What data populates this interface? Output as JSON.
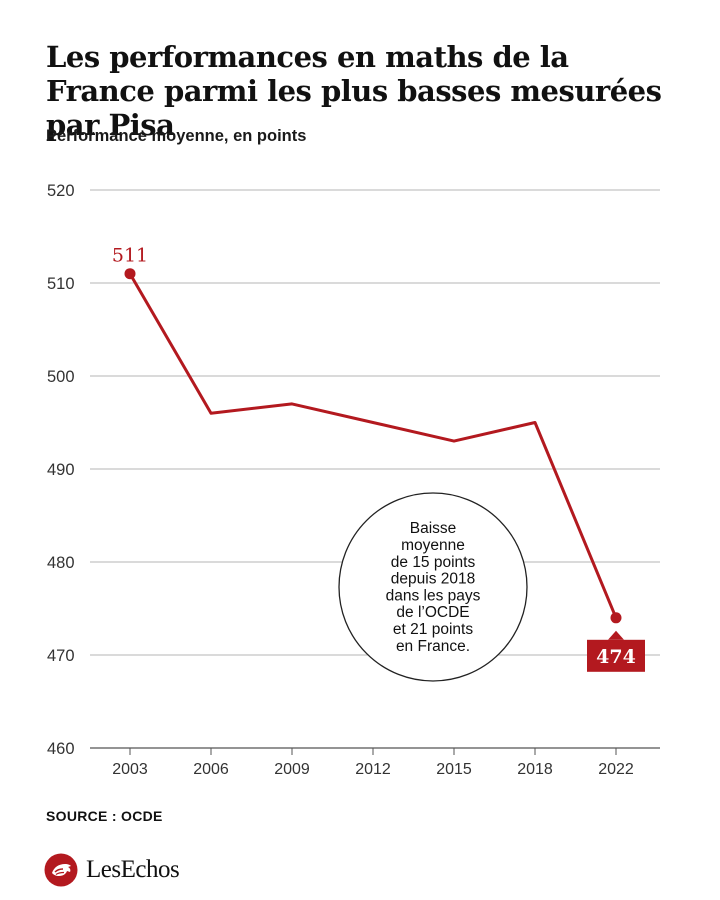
{
  "title": "Les performances en maths de la France parmi les plus basses mesurées par Pisa",
  "subtitle": "Performance moyenne, en points",
  "source": "SOURCE : OCDE",
  "logo": {
    "name": "LesEchos",
    "icon": "les-echos-logo-icon"
  },
  "colors": {
    "accent": "#b3191f",
    "grid": "#b5b5b5",
    "text": "#111111"
  },
  "chart_data": {
    "type": "line",
    "title": "Les performances en maths de la France parmi les plus basses mesurées par Pisa",
    "ylabel": "Performance moyenne, en points",
    "xlabel": "",
    "grid": true,
    "ylim": [
      460,
      520
    ],
    "yticks": [
      460,
      470,
      480,
      490,
      500,
      510,
      520
    ],
    "categories": [
      "2003",
      "2006",
      "2009",
      "2012",
      "2015",
      "2018",
      "2022"
    ],
    "series": [
      {
        "name": "France",
        "values": [
          511,
          496,
          497,
          495,
          493,
          495,
          474
        ]
      }
    ],
    "data_labels": [
      {
        "category": "2003",
        "text": "511"
      },
      {
        "category": "2022",
        "text": "474"
      }
    ],
    "annotation": {
      "lines": [
        "Baisse",
        "moyenne",
        "de 15 points",
        "depuis 2018",
        "dans les pays",
        "de l’OCDE",
        "et 21 points",
        "en France."
      ]
    }
  }
}
